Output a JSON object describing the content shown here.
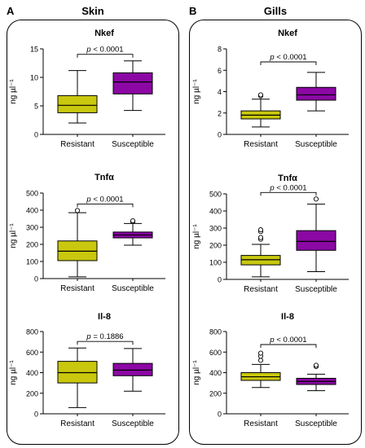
{
  "panels": [
    {
      "letter": "A",
      "title": "Skin"
    },
    {
      "letter": "B",
      "title": "Gills"
    }
  ],
  "colors": {
    "resistant": "#c9c80e",
    "susceptible": "#8b08a4",
    "frame": "#000000"
  },
  "chart_data": [
    {
      "type": "box",
      "panel": "A",
      "title": "Nkef",
      "ylabel": "ng µl⁻¹",
      "ylim": [
        0,
        15
      ],
      "yticks": [
        0,
        5,
        10,
        15
      ],
      "categories": [
        "Resistant",
        "Susceptible"
      ],
      "pvalue": "p < 0.0001",
      "boxes": [
        {
          "category": "Resistant",
          "min": 2.0,
          "q1": 3.8,
          "median": 5.1,
          "q3": 6.8,
          "max": 11.2,
          "outliers": []
        },
        {
          "category": "Susceptible",
          "min": 4.2,
          "q1": 7.1,
          "median": 9.2,
          "q3": 10.8,
          "max": 12.9,
          "outliers": []
        }
      ]
    },
    {
      "type": "box",
      "panel": "A",
      "title": "Tnfα",
      "ylabel": "ng µl⁻¹",
      "ylim": [
        0,
        500
      ],
      "yticks": [
        0,
        100,
        200,
        300,
        400,
        500
      ],
      "categories": [
        "Resistant",
        "Susceptible"
      ],
      "pvalue": "p < 0.0001",
      "boxes": [
        {
          "category": "Resistant",
          "min": 10,
          "q1": 105,
          "median": 160,
          "q3": 220,
          "max": 385,
          "outliers": [
            398
          ]
        },
        {
          "category": "Susceptible",
          "min": 195,
          "q1": 238,
          "median": 255,
          "q3": 272,
          "max": 322,
          "outliers": [
            333,
            338
          ]
        }
      ]
    },
    {
      "type": "box",
      "panel": "A",
      "title": "Il-8",
      "ylabel": "ng µl⁻¹",
      "ylim": [
        0,
        800
      ],
      "yticks": [
        0,
        200,
        400,
        600,
        800
      ],
      "categories": [
        "Resistant",
        "Susceptible"
      ],
      "pvalue": "p = 0.1886",
      "boxes": [
        {
          "category": "Resistant",
          "min": 60,
          "q1": 300,
          "median": 400,
          "q3": 510,
          "max": 640,
          "outliers": []
        },
        {
          "category": "Susceptible",
          "min": 220,
          "q1": 370,
          "median": 425,
          "q3": 490,
          "max": 635,
          "outliers": []
        }
      ]
    },
    {
      "type": "box",
      "panel": "B",
      "title": "Nkef",
      "ylabel": "ng µl⁻¹",
      "ylim": [
        0,
        8
      ],
      "yticks": [
        0,
        2,
        4,
        6,
        8
      ],
      "categories": [
        "Resistant",
        "Susceptible"
      ],
      "pvalue": "p < 0.0001",
      "boxes": [
        {
          "category": "Resistant",
          "min": 0.7,
          "q1": 1.45,
          "median": 1.8,
          "q3": 2.2,
          "max": 3.3,
          "outliers": [
            3.6,
            3.7
          ]
        },
        {
          "category": "Susceptible",
          "min": 2.2,
          "q1": 3.2,
          "median": 3.7,
          "q3": 4.4,
          "max": 5.8,
          "outliers": []
        }
      ]
    },
    {
      "type": "box",
      "panel": "B",
      "title": "Tnfα",
      "ylabel": "ng µl⁻¹",
      "ylim": [
        0,
        500
      ],
      "yticks": [
        0,
        100,
        200,
        300,
        400,
        500
      ],
      "categories": [
        "Resistant",
        "Susceptible"
      ],
      "pvalue": "p < 0.0001",
      "boxes": [
        {
          "category": "Resistant",
          "min": 15,
          "q1": 85,
          "median": 115,
          "q3": 140,
          "max": 205,
          "outliers": [
            235,
            245,
            280,
            290
          ]
        },
        {
          "category": "Susceptible",
          "min": 45,
          "q1": 170,
          "median": 222,
          "q3": 285,
          "max": 440,
          "outliers": [
            470
          ]
        }
      ]
    },
    {
      "type": "box",
      "panel": "B",
      "title": "Il-8",
      "ylabel": "ng µl⁻¹",
      "ylim": [
        0,
        800
      ],
      "yticks": [
        0,
        200,
        400,
        600,
        800
      ],
      "categories": [
        "Resistant",
        "Susceptible"
      ],
      "pvalue": "p < 0.0001",
      "boxes": [
        {
          "category": "Resistant",
          "min": 255,
          "q1": 325,
          "median": 360,
          "q3": 400,
          "max": 480,
          "outliers": [
            520,
            560,
            590
          ]
        },
        {
          "category": "Susceptible",
          "min": 225,
          "q1": 285,
          "median": 315,
          "q3": 345,
          "max": 385,
          "outliers": [
            460,
            472
          ]
        }
      ]
    }
  ]
}
